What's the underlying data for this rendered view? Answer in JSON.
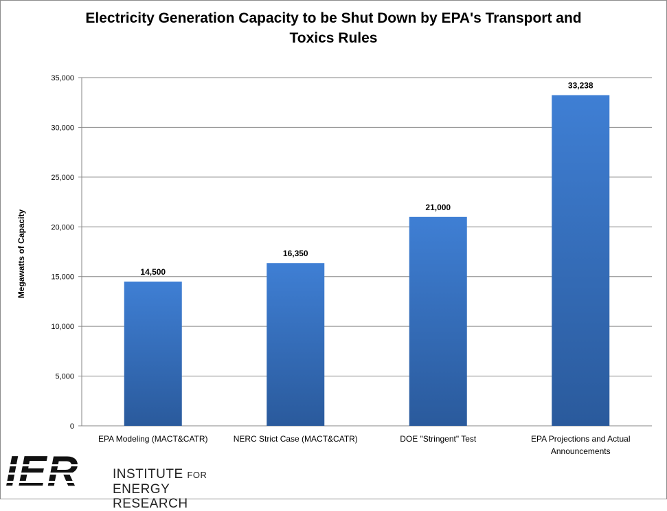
{
  "chart_data": {
    "type": "bar",
    "title_lines": [
      "Electricity Generation Capacity to be Shut Down by EPA's Transport and",
      "Toxics Rules"
    ],
    "ylabel": "Megawatts of Capacity",
    "xlabel": "",
    "ylim": [
      0,
      35000
    ],
    "yticks": [
      0,
      5000,
      10000,
      15000,
      20000,
      25000,
      30000,
      35000
    ],
    "ytick_labels": [
      "0",
      "5,000",
      "10,000",
      "15,000",
      "20,000",
      "25,000",
      "30,000",
      "35,000"
    ],
    "categories": [
      [
        "EPA Modeling (MACT&CATR)"
      ],
      [
        "NERC Strict Case (MACT&CATR)"
      ],
      [
        "DOE \"Stringent\" Test"
      ],
      [
        "EPA Projections and Actual",
        "Announcements"
      ]
    ],
    "values": [
      14500,
      16350,
      21000,
      33238
    ],
    "value_labels": [
      "14,500",
      "16,350",
      "21,000",
      "33,238"
    ],
    "grid": true,
    "legend": "none",
    "colors": {
      "bar_top": "#3f7fd4",
      "bar_bottom": "#2a5a9c",
      "grid": "#868686"
    }
  },
  "logo": {
    "letters": "IER",
    "name_line1_main": "INSTITUTE",
    "name_line1_small": "FOR",
    "name_line2": "ENERGY RESEARCH"
  }
}
